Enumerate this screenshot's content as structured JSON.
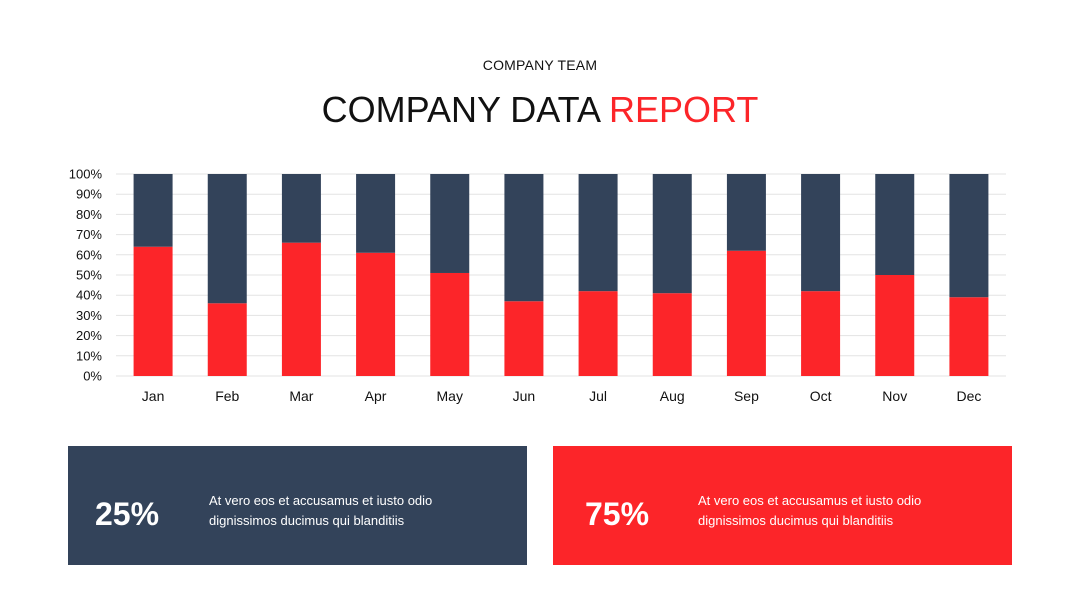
{
  "header": {
    "subtitle": "COMPANY TEAM",
    "title_main": "COMPANY DATA ",
    "title_accent": "REPORT"
  },
  "colors": {
    "dark": "#33435a",
    "accent": "#fc2529",
    "grid": "#e3e3e3"
  },
  "chart_data": {
    "type": "bar",
    "stacked": true,
    "categories": [
      "Jan",
      "Feb",
      "Mar",
      "Apr",
      "May",
      "Jun",
      "Jul",
      "Aug",
      "Sep",
      "Oct",
      "Nov",
      "Dec"
    ],
    "series": [
      {
        "color": "#fc2529",
        "values": [
          64,
          36,
          66,
          61,
          51,
          37,
          42,
          41,
          62,
          42,
          50,
          39
        ]
      },
      {
        "color": "#33435a",
        "values": [
          36,
          64,
          34,
          39,
          49,
          63,
          58,
          59,
          38,
          58,
          50,
          61
        ]
      }
    ],
    "ylim": [
      0,
      100
    ],
    "yticks": [
      "0%",
      "10%",
      "20%",
      "30%",
      "40%",
      "50%",
      "60%",
      "70%",
      "80%",
      "90%",
      "100%"
    ],
    "grid": true
  },
  "cards": [
    {
      "percent": "25%",
      "text_line1": "At vero eos et accusamus et iusto odio",
      "text_line2": "dignissimos ducimus qui blanditiis"
    },
    {
      "percent": "75%",
      "text_line1": "At vero eos et accusamus et iusto odio",
      "text_line2": "dignissimos ducimus qui blanditiis"
    }
  ]
}
